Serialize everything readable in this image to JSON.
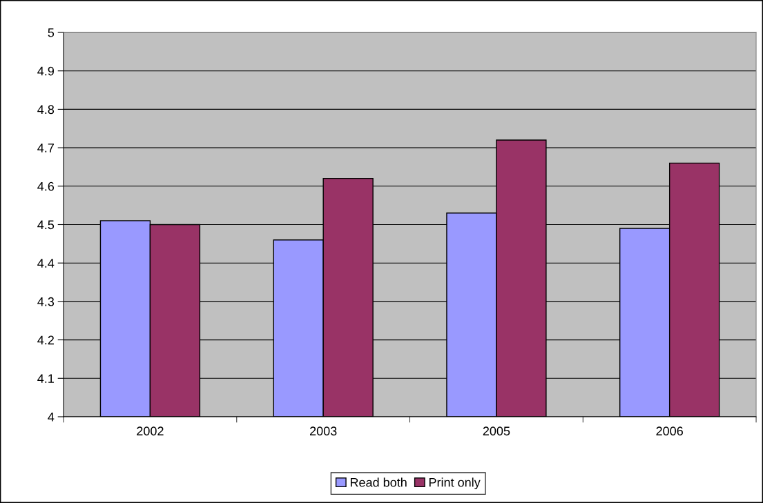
{
  "chart_data": {
    "type": "bar",
    "categories": [
      "2002",
      "2003",
      "2005",
      "2006"
    ],
    "series": [
      {
        "name": "Read both",
        "color": "#9999ff",
        "values": [
          4.51,
          4.46,
          4.53,
          4.49
        ]
      },
      {
        "name": "Print only",
        "color": "#993366",
        "values": [
          4.5,
          4.62,
          4.72,
          4.66
        ]
      }
    ],
    "ylim": [
      4,
      5
    ],
    "yticks": [
      4,
      4.1,
      4.2,
      4.3,
      4.4,
      4.5,
      4.6,
      4.7,
      4.8,
      4.9,
      5
    ],
    "grid": "y",
    "legend": "bottom"
  }
}
